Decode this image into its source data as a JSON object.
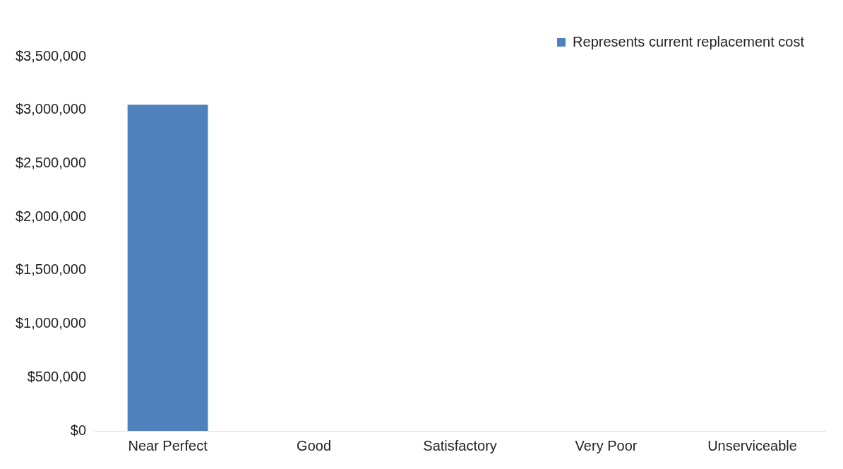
{
  "chart_data": {
    "type": "bar",
    "categories": [
      "Near Perfect",
      "Good",
      "Satisfactory",
      "Very Poor",
      "Unserviceable"
    ],
    "series": [
      {
        "name": "Represents current replacement cost",
        "color": "#4f81bd",
        "values": [
          3050000,
          0,
          0,
          0,
          0
        ]
      }
    ],
    "ylim": [
      0,
      3500000
    ],
    "yticks": [
      {
        "value": 0,
        "label": "$0"
      },
      {
        "value": 500000,
        "label": "$500,000"
      },
      {
        "value": 1000000,
        "label": "$1,000,000"
      },
      {
        "value": 1500000,
        "label": "$1,500,000"
      },
      {
        "value": 2000000,
        "label": "$2,000,000"
      },
      {
        "value": 2500000,
        "label": "$2,500,000"
      },
      {
        "value": 3000000,
        "label": "$3,000,000"
      },
      {
        "value": 3500000,
        "label": "$3,500,000"
      }
    ],
    "grid": false,
    "legend": "top right"
  }
}
